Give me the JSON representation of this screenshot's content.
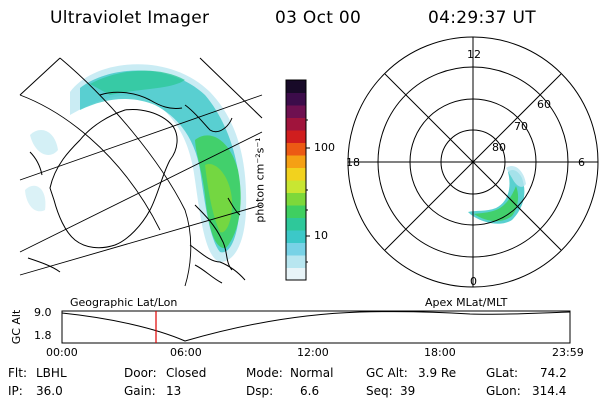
{
  "header": {
    "instrument": "Ultraviolet Imager",
    "date": "03 Oct 00",
    "time": "04:29:37 UT"
  },
  "colorbar": {
    "unit_label": "photon cm⁻²s⁻¹",
    "ticks": [
      "100",
      "10"
    ],
    "colors": [
      "#e8f4f8",
      "#b8e6f0",
      "#78d2e6",
      "#3cc8c8",
      "#2ec89a",
      "#3fcf60",
      "#7dd83a",
      "#c8e632",
      "#f2d21e",
      "#f5a014",
      "#ec5a14",
      "#d01e1e",
      "#a0143c",
      "#6e1050",
      "#3c0c4a",
      "#180a28"
    ]
  },
  "polar_plot": {
    "mlt_labels": [
      "12",
      "18",
      "6",
      "0"
    ],
    "lat_labels": [
      "60",
      "70",
      "80"
    ]
  },
  "left_map": {
    "label": "Geographic Lat/Lon"
  },
  "right_map": {
    "label": "Apex MLat/MLT"
  },
  "altitude_plot": {
    "axis_label": "GC Alt",
    "y_ticks": [
      "9.0",
      "1.8"
    ],
    "x_ticks": [
      "00:00",
      "06:00",
      "12:00",
      "18:00",
      "23:59"
    ],
    "marker_color": "#e00000"
  },
  "info": {
    "flt_label": "Flt:",
    "flt_value": "LBHL",
    "ip_label": "IP:",
    "ip_value": "36.0",
    "door_label": "Door:",
    "door_value": "Closed",
    "gain_label": "Gain:",
    "gain_value": "13",
    "mode_label": "Mode:",
    "mode_value": "Normal",
    "dsp_label": "Dsp:",
    "dsp_value": "6.6",
    "gcalt_label": "GC Alt:",
    "gcalt_value": "3.9 Re",
    "seq_label": "Seq:",
    "seq_value": "39",
    "glat_label": "GLat:",
    "glat_value": "74.2",
    "glon_label": "GLon:",
    "glon_value": "314.4"
  }
}
